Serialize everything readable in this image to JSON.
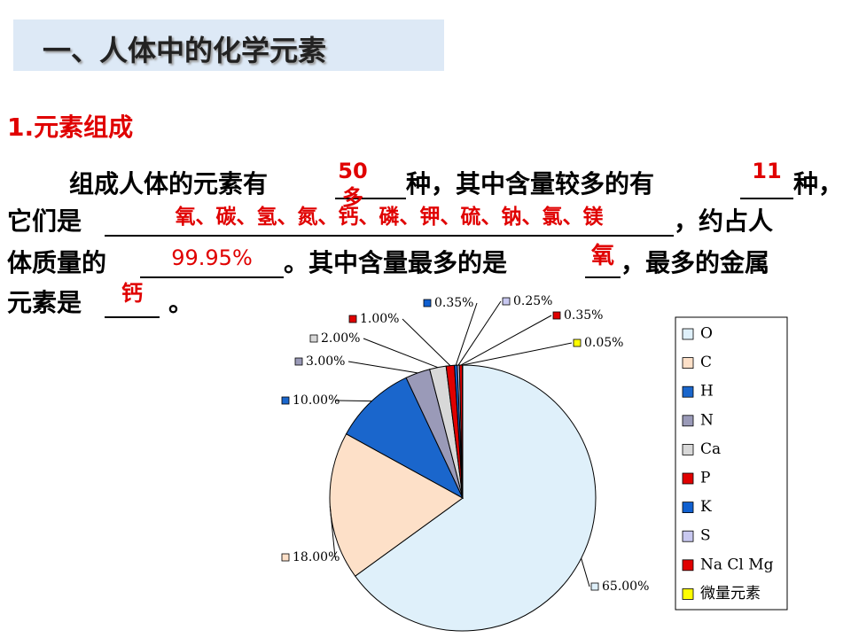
{
  "title": "一、人体中的化学元素",
  "section": "1.元素组成",
  "paragraph": {
    "texts": [
      "组成人体的元素有",
      "种，其中含量较多的有",
      "种，",
      "它们是",
      "，约占人",
      "体质量的",
      "。其中含量最多的是",
      "，最多的金属",
      "元素是",
      "。"
    ],
    "answers": [
      "50多",
      "11",
      "氧、碳、氢、氮、钙、磷、钾、硫、钠、氯、镁",
      "99.95%",
      "氧",
      "钙"
    ]
  },
  "chart_data": {
    "type": "pie",
    "categories": [
      "O",
      "C",
      "H",
      "N",
      "Ca",
      "P",
      "K",
      "S",
      "Na Cl Mg",
      "微量元素"
    ],
    "values": [
      65,
      18,
      10,
      3,
      2,
      1,
      0.35,
      0.25,
      0.35,
      0.05
    ],
    "value_labels": [
      "65.00%",
      "18.00%",
      "10.00%",
      "3.00%",
      "2.00%",
      "1.00%",
      "0.35%",
      "0.25%",
      "0.35%",
      "0.05%"
    ],
    "colors": [
      "#dff0fa",
      "#fde0c8",
      "#1a66cc",
      "#9a9ab8",
      "#d8d8d8",
      "#e00000",
      "#1060d0",
      "#c8c8f0",
      "#e00000",
      "#ffff00"
    ],
    "legend": "right"
  }
}
